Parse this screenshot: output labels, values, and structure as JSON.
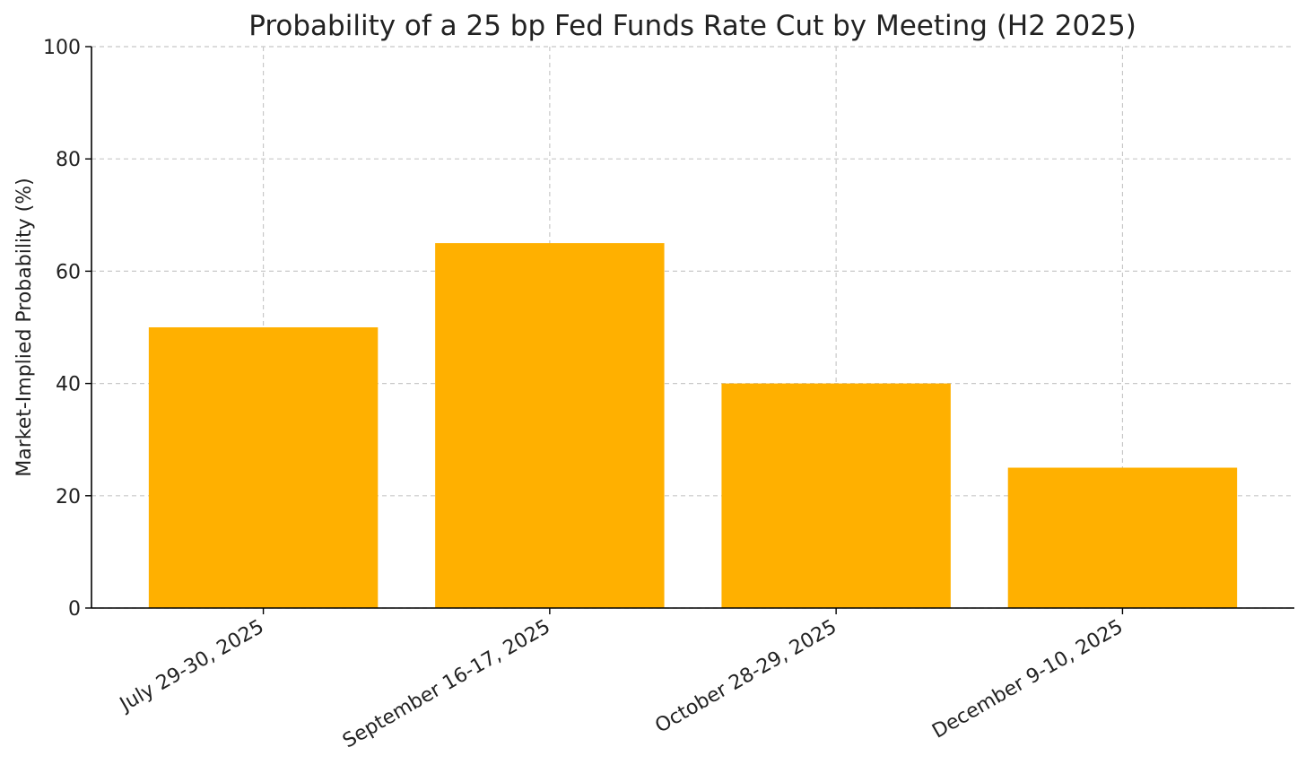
{
  "chart_data": {
    "type": "bar",
    "title": "Probability of a 25 bp Fed Funds Rate Cut by Meeting (H2 2025)",
    "xlabel": "",
    "ylabel": "Market-Implied Probability (%)",
    "categories": [
      "July 29-30, 2025",
      "September 16-17, 2025",
      "October 28-29, 2025",
      "December 9-10, 2025"
    ],
    "values": [
      50,
      65,
      40,
      25
    ],
    "ylim": [
      0,
      100
    ],
    "yticks": [
      0,
      20,
      40,
      60,
      80,
      100
    ],
    "grid": true,
    "bar_color": "#FFB000"
  }
}
